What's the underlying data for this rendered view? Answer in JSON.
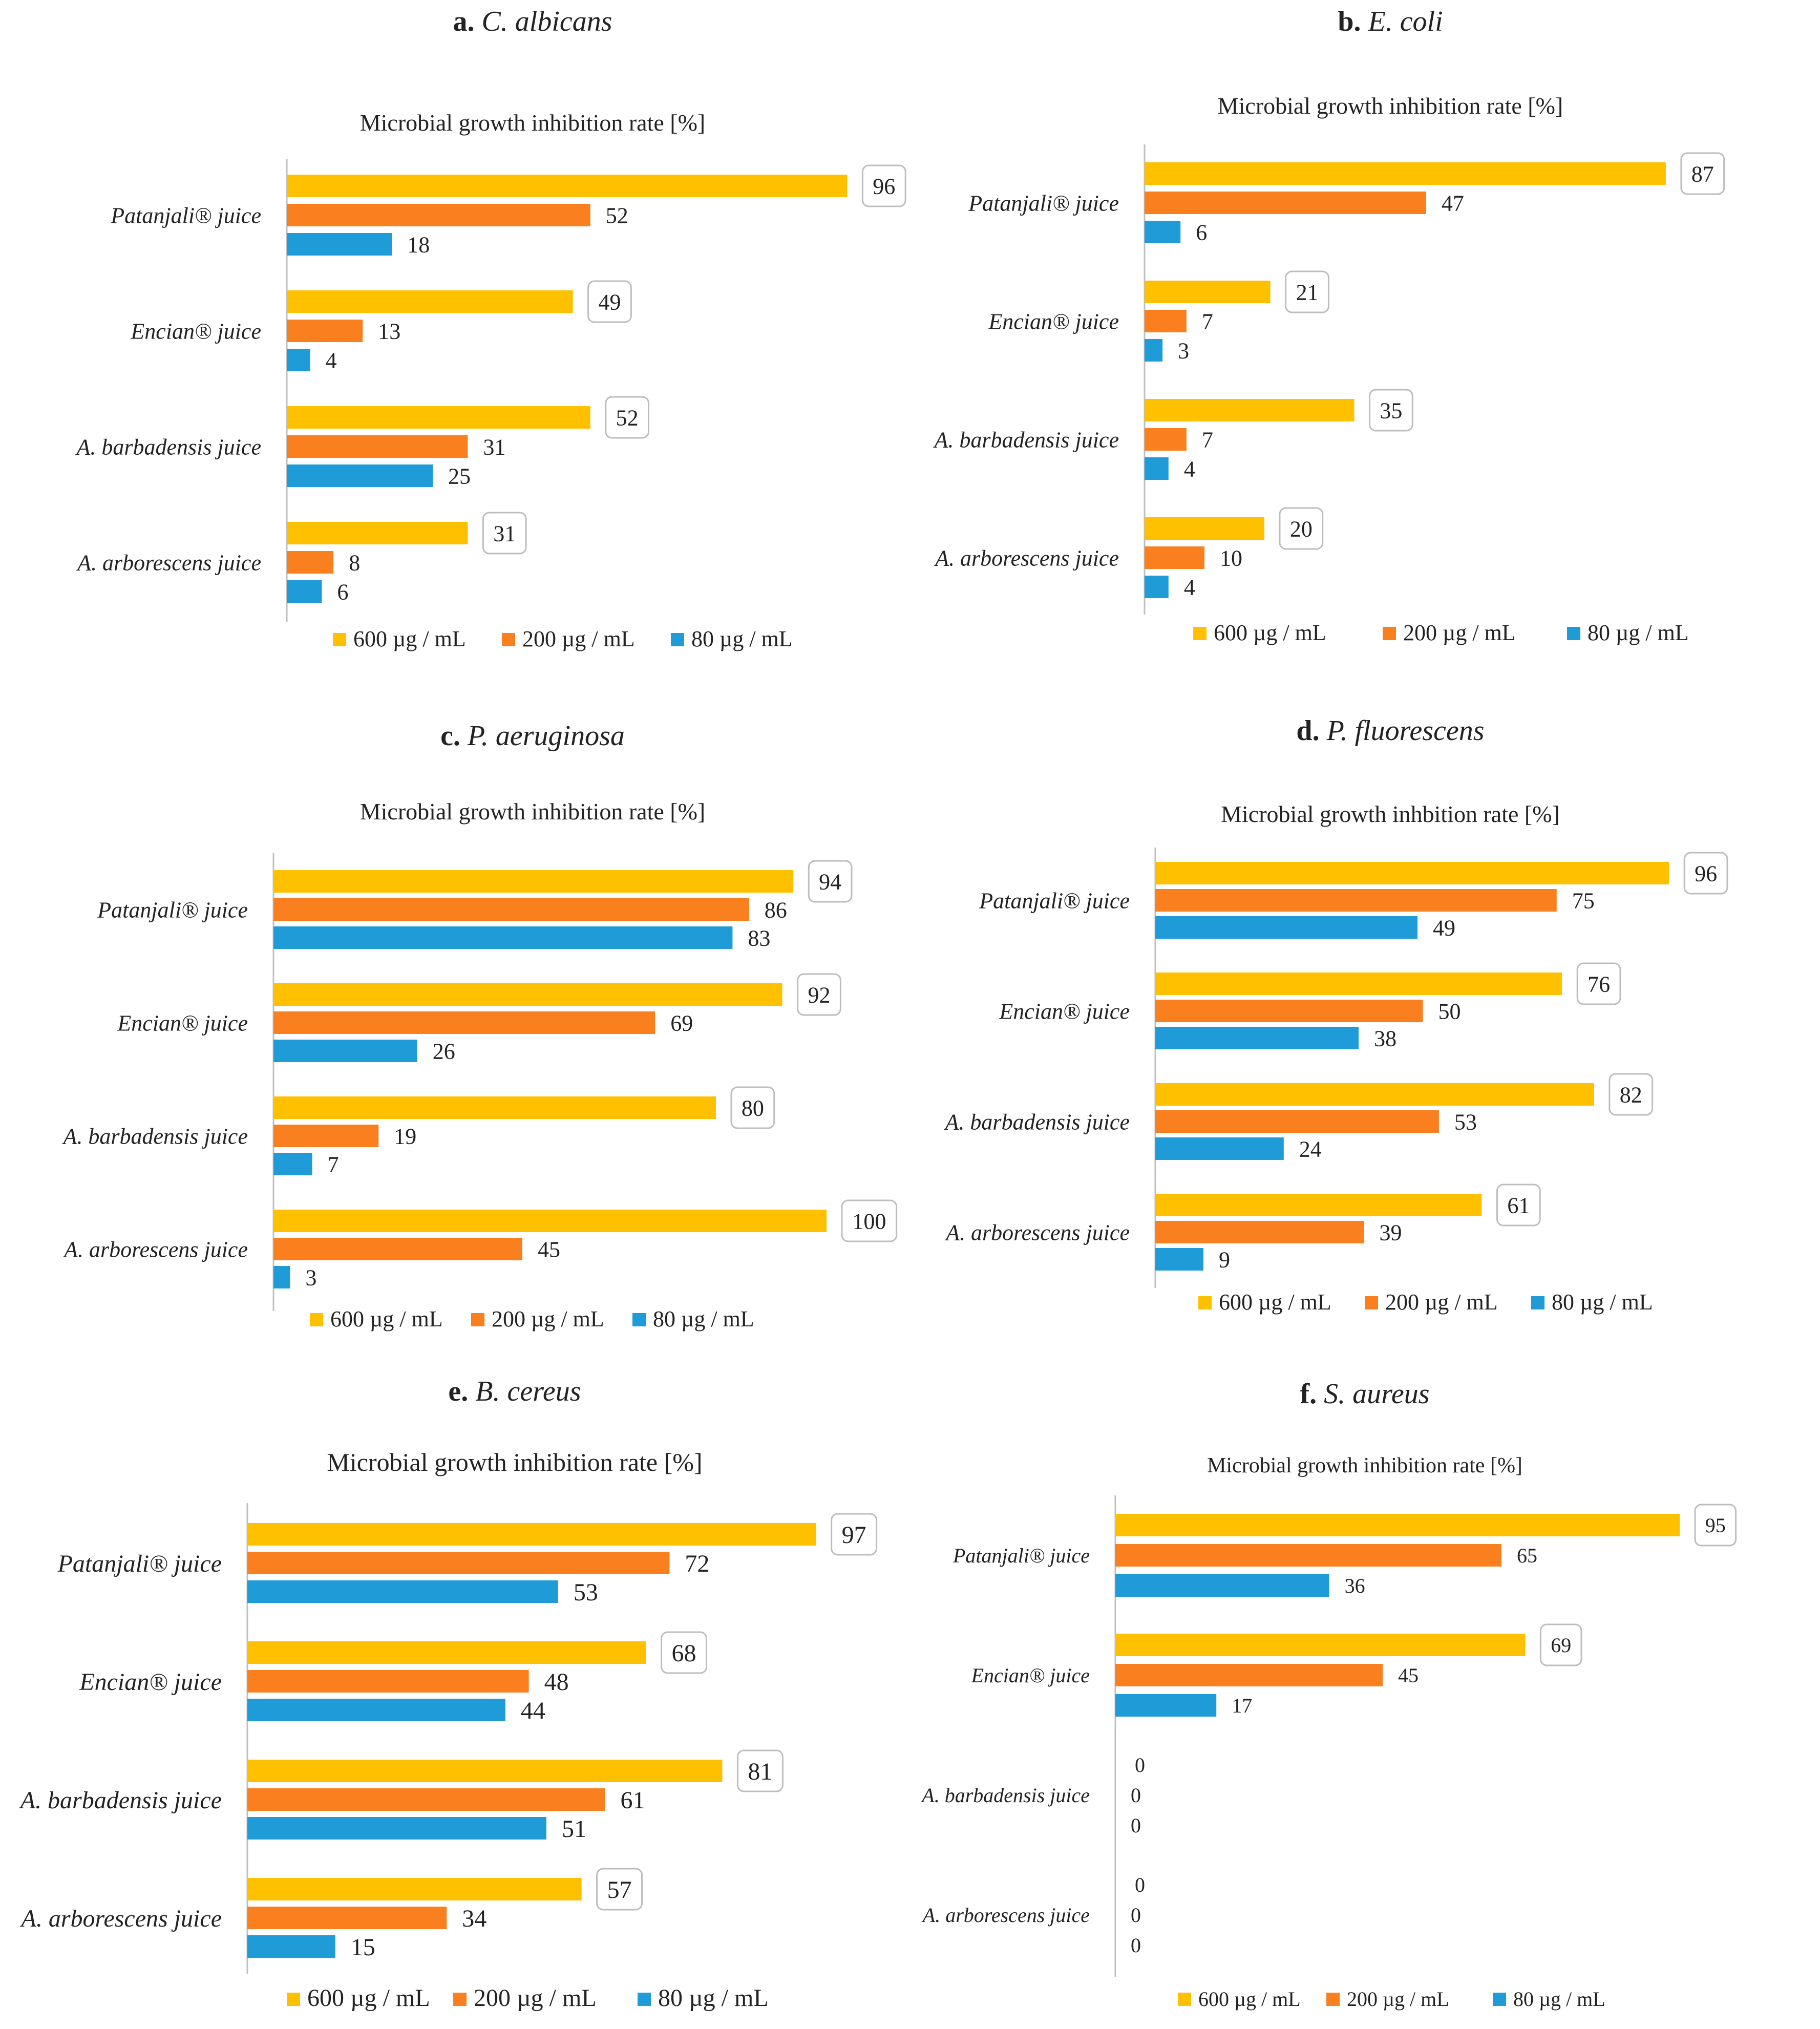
{
  "figure": {
    "shared_axis_title": "Microbial growth inhibition rate [%]",
    "categories": [
      "Patanjali® juice",
      "Encian® juice",
      "A. barbadensis juice",
      "A. arborescens juice"
    ],
    "series": [
      {
        "name": "600 µg / mL",
        "color": "#FFC000"
      },
      {
        "name": "200 µg / mL",
        "color": "#F97F1F"
      },
      {
        "name": "80 µg / mL",
        "color": "#1F9BD7"
      }
    ],
    "data_label_boxed_series": "600 µg / mL",
    "x_range": [
      0,
      100
    ]
  },
  "chart_data": [
    {
      "type": "bar",
      "orientation": "horizontal",
      "panel_letter": "a.",
      "panel_organism": "C. albicans",
      "title": "Microbial growth inhibition rate [%]",
      "categories": [
        "Patanjali® juice",
        "Encian® juice",
        "A. barbadensis juice",
        "A. arborescens juice"
      ],
      "series": [
        {
          "name": "600 µg / mL",
          "values": [
            96,
            49,
            52,
            31
          ]
        },
        {
          "name": "200 µg / mL",
          "values": [
            52,
            13,
            31,
            8
          ]
        },
        {
          "name": "80 µg / mL",
          "values": [
            18,
            4,
            25,
            6
          ]
        }
      ],
      "xlim": [
        0,
        100
      ],
      "legend": "bottom"
    },
    {
      "type": "bar",
      "orientation": "horizontal",
      "panel_letter": "b.",
      "panel_organism": "E. coli",
      "title": "Microbial growth inhibition rate [%]",
      "categories": [
        "Patanjali® juice",
        "Encian® juice",
        "A. barbadensis juice",
        "A. arborescens juice"
      ],
      "series": [
        {
          "name": "600 µg / mL",
          "values": [
            87,
            21,
            35,
            20
          ]
        },
        {
          "name": "200 µg / mL",
          "values": [
            47,
            7,
            7,
            10
          ]
        },
        {
          "name": "80 µg / mL",
          "values": [
            6,
            3,
            4,
            4
          ]
        }
      ],
      "xlim": [
        0,
        100
      ],
      "legend": "bottom"
    },
    {
      "type": "bar",
      "orientation": "horizontal",
      "panel_letter": "c.",
      "panel_organism": "P. aeruginosa",
      "title": "Microbial growth inhibition rate [%]",
      "categories": [
        "Patanjali® juice",
        "Encian® juice",
        "A. barbadensis juice",
        "A. arborescens juice"
      ],
      "series": [
        {
          "name": "600 µg / mL",
          "values": [
            94,
            92,
            80,
            100
          ]
        },
        {
          "name": "200 µg / mL",
          "values": [
            86,
            69,
            19,
            45
          ]
        },
        {
          "name": "80 µg / mL",
          "values": [
            83,
            26,
            7,
            3
          ]
        }
      ],
      "xlim": [
        0,
        100
      ],
      "legend": "bottom"
    },
    {
      "type": "bar",
      "orientation": "horizontal",
      "panel_letter": "d.",
      "panel_organism": "P. fluorescens",
      "title": "Microbial growth inhbition rate [%]",
      "categories": [
        "Patanjali® juice",
        "Encian® juice",
        "A. barbadensis juice",
        "A. arborescens juice"
      ],
      "series": [
        {
          "name": "600 µg / mL",
          "values": [
            96,
            76,
            82,
            61
          ]
        },
        {
          "name": "200 µg / mL",
          "values": [
            75,
            50,
            53,
            39
          ]
        },
        {
          "name": "80 µg / mL",
          "values": [
            49,
            38,
            24,
            9
          ]
        }
      ],
      "xlim": [
        0,
        100
      ],
      "legend": "bottom"
    },
    {
      "type": "bar",
      "orientation": "horizontal",
      "panel_letter": "e.",
      "panel_organism": "B. cereus",
      "title": "Microbial growth inhibition rate [%]",
      "categories": [
        "Patanjali® juice",
        "Encian® juice",
        "A. barbadensis juice",
        "A. arborescens juice"
      ],
      "series": [
        {
          "name": "600 µg / mL",
          "values": [
            97,
            68,
            81,
            57
          ]
        },
        {
          "name": "200 µg / mL",
          "values": [
            72,
            48,
            61,
            34
          ]
        },
        {
          "name": "80 µg / mL",
          "values": [
            53,
            44,
            51,
            15
          ]
        }
      ],
      "xlim": [
        0,
        100
      ],
      "legend": "bottom"
    },
    {
      "type": "bar",
      "orientation": "horizontal",
      "panel_letter": "f.",
      "panel_organism": "S. aureus",
      "title": "Microbial growth inhibition rate [%]",
      "categories": [
        "Patanjali® juice",
        "Encian® juice",
        "A. barbadensis juice",
        "A. arborescens juice"
      ],
      "series": [
        {
          "name": "600 µg / mL",
          "values": [
            95,
            69,
            0,
            0
          ]
        },
        {
          "name": "200 µg / mL",
          "values": [
            65,
            45,
            0,
            0
          ]
        },
        {
          "name": "80 µg / mL",
          "values": [
            36,
            17,
            0,
            0
          ]
        }
      ],
      "xlim": [
        0,
        100
      ],
      "legend": "bottom"
    }
  ]
}
